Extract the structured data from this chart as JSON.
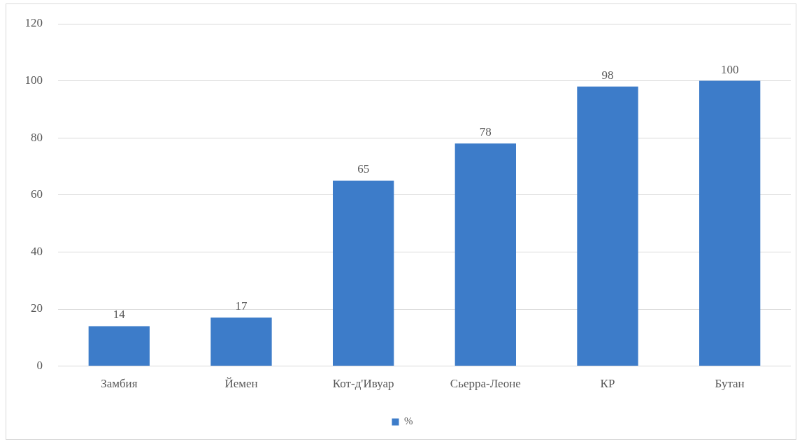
{
  "chart_data": {
    "type": "bar",
    "categories": [
      "Замбия",
      "Йемен",
      "Кот-д'Ивуар",
      "Сьерра-Леоне",
      "КР",
      "Бутан"
    ],
    "series": [
      {
        "name": "%",
        "color": "#3d7cc9",
        "values": [
          14,
          17,
          65,
          78,
          98,
          100
        ]
      }
    ],
    "ylim": [
      0,
      120
    ],
    "yticks": [
      0,
      20,
      40,
      60,
      80,
      100,
      120
    ],
    "grid": "y",
    "legend": "bottom",
    "data_labels": true
  }
}
